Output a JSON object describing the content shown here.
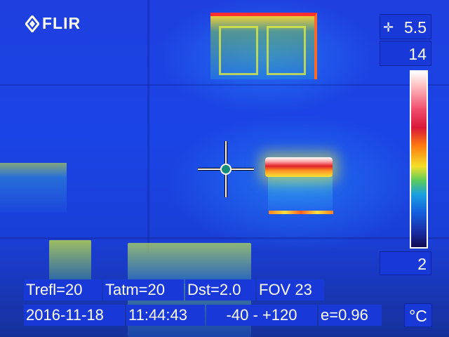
{
  "brand": {
    "logo_text": "FLIR",
    "logo_icon": "flir-diamond-icon"
  },
  "scale": {
    "spot_value": "5.5",
    "max_value": "14",
    "min_value": "2",
    "unit": "°C",
    "spot_icon": "spot-meter-icon"
  },
  "params": {
    "trefl": "Trefl=20",
    "tatm": "Tatm=20",
    "dst": "Dst=2.0",
    "fov": "FOV 23",
    "date": "2016-11-18",
    "time": "11:44:43",
    "range": "-40 -  +120",
    "emissivity": "e=0.96"
  },
  "colors": {
    "overlay_bg": "#1838d8",
    "hot": "#e0202a",
    "warm": "#f4e02a",
    "cold": "#1a2fd0"
  }
}
